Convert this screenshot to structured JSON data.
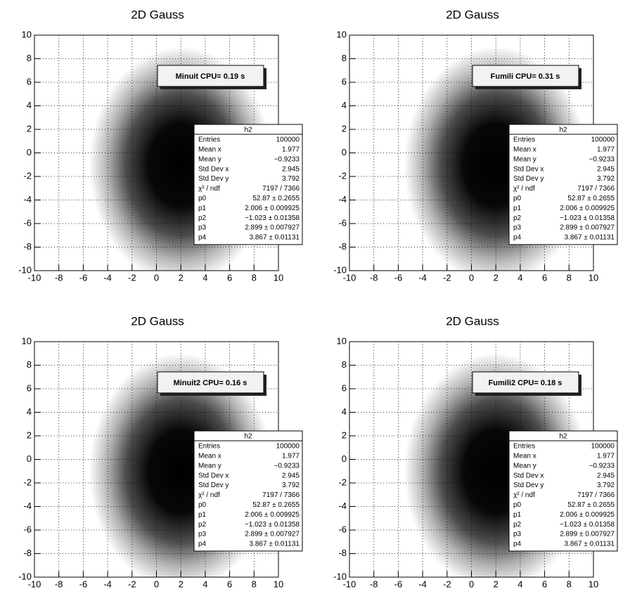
{
  "chart_data": [
    {
      "type": "hist2d",
      "title": "2D Gauss",
      "xlim": [
        -10,
        10
      ],
      "ylim": [
        -10,
        10
      ],
      "xticks": [
        -10,
        -8,
        -6,
        -4,
        -2,
        0,
        2,
        4,
        6,
        8,
        10
      ],
      "yticks": [
        -10,
        -8,
        -6,
        -4,
        -2,
        0,
        2,
        4,
        6,
        8,
        10
      ],
      "grid": true,
      "annotation": "Minuit CPU= 0.19 s",
      "stats": {
        "title": "h2",
        "rows": [
          {
            "label": "Entries",
            "value": 100000
          },
          {
            "label": "Mean x",
            "value": 1.977
          },
          {
            "label": "Mean y",
            "value": -0.9233,
            "value_label": "−0.9233"
          },
          {
            "label": "Std Dev x",
            "value": 2.945
          },
          {
            "label": "Std Dev y",
            "value": 3.792
          },
          {
            "label": "χ² / ndf",
            "value_label": "7197 / 7366"
          },
          {
            "label": "p0",
            "value": 52.87,
            "error": 0.2655,
            "value_label": "52.87 ± 0.2655"
          },
          {
            "label": "p1",
            "value": 2.006,
            "error": 0.009925,
            "value_label": "2.006 ± 0.009925"
          },
          {
            "label": "p2",
            "value": -1.023,
            "error": 0.01358,
            "value_label": "−1.023 ± 0.01358"
          },
          {
            "label": "p3",
            "value": 2.899,
            "error": 0.007927,
            "value_label": "2.899 ± 0.007927"
          },
          {
            "label": "p4",
            "value": 3.867,
            "error": 0.01131,
            "value_label": "3.867 ± 0.01131"
          }
        ]
      }
    },
    {
      "type": "hist2d",
      "title": "2D Gauss",
      "xlim": [
        -10,
        10
      ],
      "ylim": [
        -10,
        10
      ],
      "xticks": [
        -10,
        -8,
        -6,
        -4,
        -2,
        0,
        2,
        4,
        6,
        8,
        10
      ],
      "yticks": [
        -10,
        -8,
        -6,
        -4,
        -2,
        0,
        2,
        4,
        6,
        8,
        10
      ],
      "grid": true,
      "annotation": "Fumili CPU= 0.31 s",
      "stats": {
        "title": "h2",
        "rows": [
          {
            "label": "Entries",
            "value": 100000
          },
          {
            "label": "Mean x",
            "value": 1.977
          },
          {
            "label": "Mean y",
            "value": -0.9233,
            "value_label": "−0.9233"
          },
          {
            "label": "Std Dev x",
            "value": 2.945
          },
          {
            "label": "Std Dev y",
            "value": 3.792
          },
          {
            "label": "χ² / ndf",
            "value_label": "7197 / 7366"
          },
          {
            "label": "p0",
            "value": 52.87,
            "error": 0.2655,
            "value_label": "52.87 ± 0.2655"
          },
          {
            "label": "p1",
            "value": 2.006,
            "error": 0.009925,
            "value_label": "2.006 ± 0.009925"
          },
          {
            "label": "p2",
            "value": -1.023,
            "error": 0.01358,
            "value_label": "−1.023 ± 0.01358"
          },
          {
            "label": "p3",
            "value": 2.899,
            "error": 0.007927,
            "value_label": "2.899 ± 0.007927"
          },
          {
            "label": "p4",
            "value": 3.867,
            "error": 0.01131,
            "value_label": "3.867 ± 0.01131"
          }
        ]
      }
    },
    {
      "type": "hist2d",
      "title": "2D Gauss",
      "xlim": [
        -10,
        10
      ],
      "ylim": [
        -10,
        10
      ],
      "xticks": [
        -10,
        -8,
        -6,
        -4,
        -2,
        0,
        2,
        4,
        6,
        8,
        10
      ],
      "yticks": [
        -10,
        -8,
        -6,
        -4,
        -2,
        0,
        2,
        4,
        6,
        8,
        10
      ],
      "grid": true,
      "annotation": "Minuit2 CPU= 0.16 s",
      "stats": {
        "title": "h2",
        "rows": [
          {
            "label": "Entries",
            "value": 100000
          },
          {
            "label": "Mean x",
            "value": 1.977
          },
          {
            "label": "Mean y",
            "value": -0.9233,
            "value_label": "−0.9233"
          },
          {
            "label": "Std Dev x",
            "value": 2.945
          },
          {
            "label": "Std Dev y",
            "value": 3.792
          },
          {
            "label": "χ² / ndf",
            "value_label": "7197 / 7366"
          },
          {
            "label": "p0",
            "value": 52.87,
            "error": 0.2655,
            "value_label": "52.87 ± 0.2655"
          },
          {
            "label": "p1",
            "value": 2.006,
            "error": 0.009925,
            "value_label": "2.006 ± 0.009925"
          },
          {
            "label": "p2",
            "value": -1.023,
            "error": 0.01358,
            "value_label": "−1.023 ± 0.01358"
          },
          {
            "label": "p3",
            "value": 2.899,
            "error": 0.007927,
            "value_label": "2.899 ± 0.007927"
          },
          {
            "label": "p4",
            "value": 3.867,
            "error": 0.01131,
            "value_label": "3.867 ± 0.01131"
          }
        ]
      }
    },
    {
      "type": "hist2d",
      "title": "2D Gauss",
      "xlim": [
        -10,
        10
      ],
      "ylim": [
        -10,
        10
      ],
      "xticks": [
        -10,
        -8,
        -6,
        -4,
        -2,
        0,
        2,
        4,
        6,
        8,
        10
      ],
      "yticks": [
        -10,
        -8,
        -6,
        -4,
        -2,
        0,
        2,
        4,
        6,
        8,
        10
      ],
      "grid": true,
      "annotation": "Fumili2 CPU= 0.18 s",
      "stats": {
        "title": "h2",
        "rows": [
          {
            "label": "Entries",
            "value": 100000
          },
          {
            "label": "Mean x",
            "value": 1.977
          },
          {
            "label": "Mean y",
            "value": -0.9233,
            "value_label": "−0.9233"
          },
          {
            "label": "Std Dev x",
            "value": 2.945
          },
          {
            "label": "Std Dev y",
            "value": 3.792
          },
          {
            "label": "χ² / ndf",
            "value_label": "7197 / 7366"
          },
          {
            "label": "p0",
            "value": 52.87,
            "error": 0.2655,
            "value_label": "52.87 ± 0.2655"
          },
          {
            "label": "p1",
            "value": 2.006,
            "error": 0.009925,
            "value_label": "2.006 ± 0.009925"
          },
          {
            "label": "p2",
            "value": -1.023,
            "error": 0.01358,
            "value_label": "−1.023 ± 0.01358"
          },
          {
            "label": "p3",
            "value": 2.899,
            "error": 0.007927,
            "value_label": "2.899 ± 0.007927"
          },
          {
            "label": "p4",
            "value": 3.867,
            "error": 0.01131,
            "value_label": "3.867 ± 0.01131"
          }
        ]
      }
    }
  ]
}
